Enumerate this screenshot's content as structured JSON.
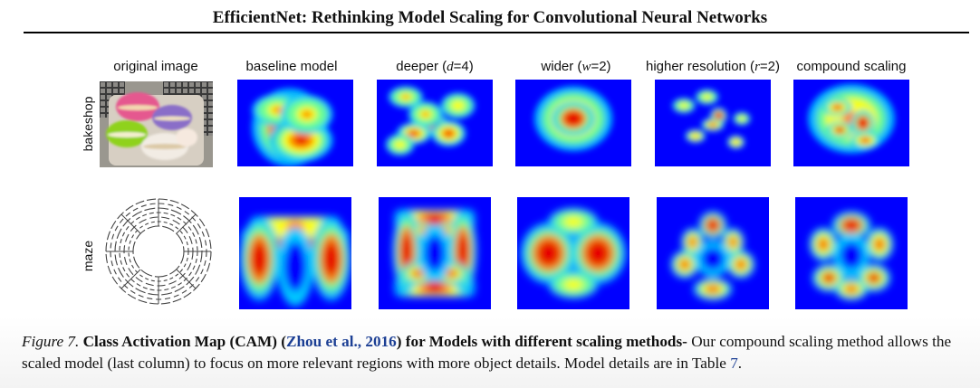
{
  "header": {
    "running_title": "EfficientNet: Rethinking Model Scaling for Convolutional Neural Networks"
  },
  "columns": [
    {
      "label": "original image"
    },
    {
      "label": "baseline model"
    },
    {
      "label": "deeper (",
      "symbol": "d",
      "value": "=4)"
    },
    {
      "label": "wider (",
      "symbol": "w",
      "value": "=2)"
    },
    {
      "label": "higher resolution (",
      "symbol": "r",
      "value": "=2)"
    },
    {
      "label": "compound scaling"
    }
  ],
  "rows": [
    {
      "label": "bakeshop"
    },
    {
      "label": "maze"
    }
  ],
  "colormap": [
    "#00008f",
    "#0000ff",
    "#00c8ff",
    "#70ff90",
    "#ffff00",
    "#ff8000",
    "#e60000"
  ],
  "caption": {
    "figure_label": "Figure 7.",
    "title": "Class Activation Map (CAM) (",
    "citation": "Zhou et al., 2016",
    "title_end": ") for Models with different scaling methods-",
    "body": "Our compound scaling method allows the scaled model (last column) to focus on more relevant regions with more object details. Model details are in Table",
    "table_ref": "7",
    "end": "."
  }
}
